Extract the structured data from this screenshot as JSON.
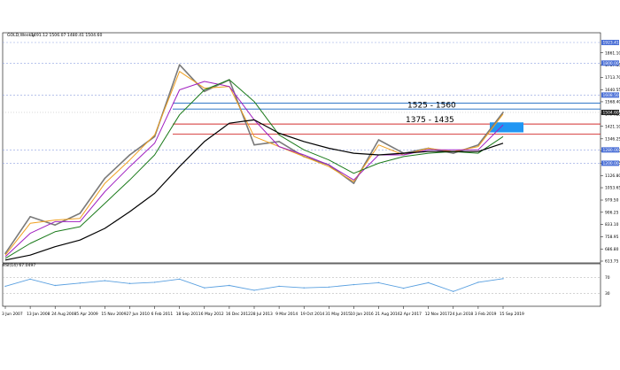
{
  "header": {
    "symbol_label": "GOLD,Weekly",
    "ohlc_text": "1491.12 1506.07 1480.41 1504.60"
  },
  "rsi_header": "RSI(14) 67.0497",
  "price_ticks": [
    "1861.10",
    "1787.85",
    "1713.70",
    "1640.55",
    "1568.40",
    "1494.25",
    "1421.10",
    "1346.25",
    "1273.10",
    "1199.95",
    "1126.80",
    "1053.65",
    "979.50",
    "906.25",
    "833.10",
    "758.95",
    "686.80",
    "613.75"
  ],
  "price_badges": [
    {
      "value": "1923.41",
      "color": "#4a6fd6"
    },
    {
      "value": "1800.00",
      "color": "#4a6fd6"
    },
    {
      "value": "1608.50",
      "color": "#4a6fd6"
    },
    {
      "value": "1504.60",
      "color": "#222222"
    },
    {
      "value": "1280.00",
      "color": "#4a6fd6"
    },
    {
      "value": "1200.00",
      "color": "#4a6fd6"
    }
  ],
  "rsi_ticks": [
    "70",
    "30"
  ],
  "rsi_levels": [
    70,
    30
  ],
  "date_labels": [
    "3 Jun 2007",
    "13 Jan 2008",
    "24 Aug 2008",
    "5 Apr 2009",
    "15 Nov 2009",
    "27 Jun 2010",
    "6 Feb 2011",
    "18 Sep 2011",
    "6 May 2012",
    "16 Dec 2012",
    "28 Jul 2013",
    "9 Mar 2014",
    "19 Oct 2014",
    "31 May 2015",
    "10 Jan 2016",
    "21 Aug 2016",
    "2 Apr 2017",
    "12 Nov 2017",
    "24 Jun 2018",
    "3 Feb 2019",
    "15 Sep 2019"
  ],
  "zones": [
    {
      "label": "1525 - 1560",
      "low": 1525,
      "high": 1560,
      "line_color": "#1565c0",
      "label_color": "#000000"
    },
    {
      "label": "1375 - 1435",
      "low": 1375,
      "high": 1435,
      "line_color": "#d32f2f",
      "label_color": "#000000"
    }
  ],
  "colors": {
    "price": "#7a7a7a",
    "ma_fast": "#f0a020",
    "ma_mid": "#a020c0",
    "ma_slow": "#1a7a1a",
    "ma_long": "#000000",
    "rsi": "#5aa0e0",
    "grid": "#8ea0e0",
    "zone_fill": "#2196f3"
  },
  "chart_data": {
    "type": "line",
    "title": "GOLD,Weekly",
    "x": [
      "3 Jun 2007",
      "13 Jan 2008",
      "24 Aug 2008",
      "5 Apr 2009",
      "15 Nov 2009",
      "27 Jun 2010",
      "6 Feb 2011",
      "18 Sep 2011",
      "6 May 2012",
      "16 Dec 2012",
      "28 Jul 2013",
      "9 Mar 2014",
      "19 Oct 2014",
      "31 May 2015",
      "10 Jan 2016",
      "21 Aug 2016",
      "2 Apr 2017",
      "12 Nov 2017",
      "24 Jun 2018",
      "3 Feb 2019",
      "15 Sep 2019"
    ],
    "ylim": [
      613.75,
      1923.41
    ],
    "series": [
      {
        "values": [
          660,
          880,
          830,
          900,
          1110,
          1250,
          1360,
          1790,
          1630,
          1700,
          1310,
          1330,
          1240,
          1190,
          1080,
          1340,
          1260,
          1290,
          1260,
          1310,
          1505
        ]
      },
      {
        "values": [
          650,
          840,
          860,
          870,
          1080,
          1220,
          1370,
          1750,
          1650,
          1660,
          1360,
          1300,
          1240,
          1180,
          1090,
          1310,
          1250,
          1290,
          1270,
          1300,
          1495
        ]
      },
      {
        "values": [
          640,
          780,
          850,
          850,
          1030,
          1180,
          1320,
          1640,
          1690,
          1660,
          1460,
          1300,
          1250,
          1190,
          1100,
          1250,
          1250,
          1280,
          1280,
          1280,
          1430
        ]
      },
      {
        "values": [
          630,
          720,
          790,
          820,
          960,
          1100,
          1250,
          1490,
          1640,
          1700,
          1570,
          1370,
          1280,
          1220,
          1140,
          1200,
          1240,
          1260,
          1270,
          1260,
          1360
        ]
      },
      {
        "values": [
          620,
          650,
          700,
          740,
          810,
          910,
          1020,
          1180,
          1330,
          1440,
          1460,
          1380,
          1330,
          1290,
          1260,
          1250,
          1260,
          1270,
          1270,
          1270,
          1320
        ]
      }
    ],
    "rsi": {
      "name": "RSI(14)",
      "ylim": [
        0,
        100
      ],
      "levels": [
        70,
        30
      ],
      "values": [
        48,
        66,
        50,
        56,
        62,
        55,
        58,
        66,
        44,
        50,
        38,
        48,
        44,
        46,
        52,
        57,
        43,
        57,
        35,
        58,
        67.05
      ]
    }
  }
}
